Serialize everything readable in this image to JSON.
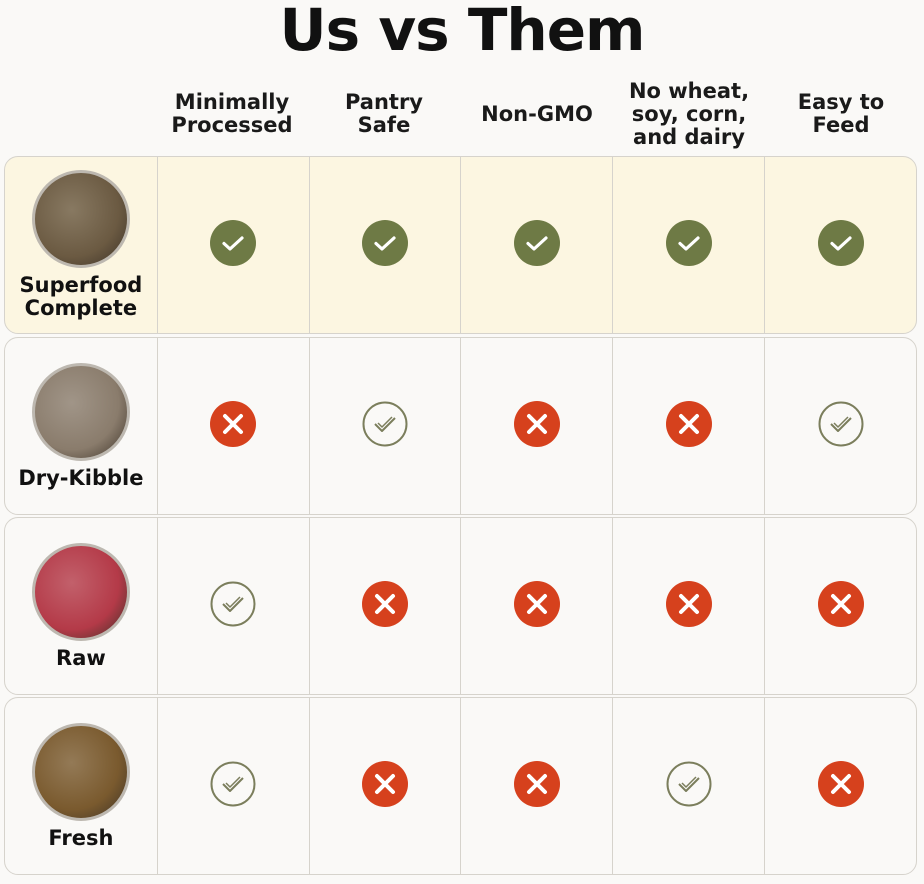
{
  "title": "Us vs Them",
  "columns": [
    "Minimally\nProcessed",
    "Pantry\nSafe",
    "Non-GMO",
    "No wheat,\nsoy, corn,\nand dairy",
    "Easy to\nFeed"
  ],
  "colors": {
    "check_filled": "#6e7a45",
    "cross": "#d6411d",
    "check_outline": "#7b7e5c",
    "highlight": "#fcf6e1"
  },
  "rows": [
    {
      "name": "Superfood\nComplete",
      "image": "superfood-bowl",
      "bowl_color": "#6b5a42",
      "highlight": true,
      "values": [
        "check-filled",
        "check-filled",
        "check-filled",
        "check-filled",
        "check-filled"
      ]
    },
    {
      "name": "Dry-Kibble",
      "image": "kibble-bowl",
      "bowl_color": "#8a7c6c",
      "highlight": false,
      "values": [
        "cross",
        "check-outline",
        "cross",
        "cross",
        "check-outline"
      ]
    },
    {
      "name": "Raw",
      "image": "raw-meat-bowl",
      "bowl_color": "#b43a48",
      "highlight": false,
      "values": [
        "check-outline",
        "cross",
        "cross",
        "cross",
        "cross"
      ]
    },
    {
      "name": "Fresh",
      "image": "fresh-food-bowl",
      "bowl_color": "#7a5a2e",
      "highlight": false,
      "values": [
        "check-outline",
        "cross",
        "cross",
        "check-outline",
        "cross"
      ]
    }
  ]
}
